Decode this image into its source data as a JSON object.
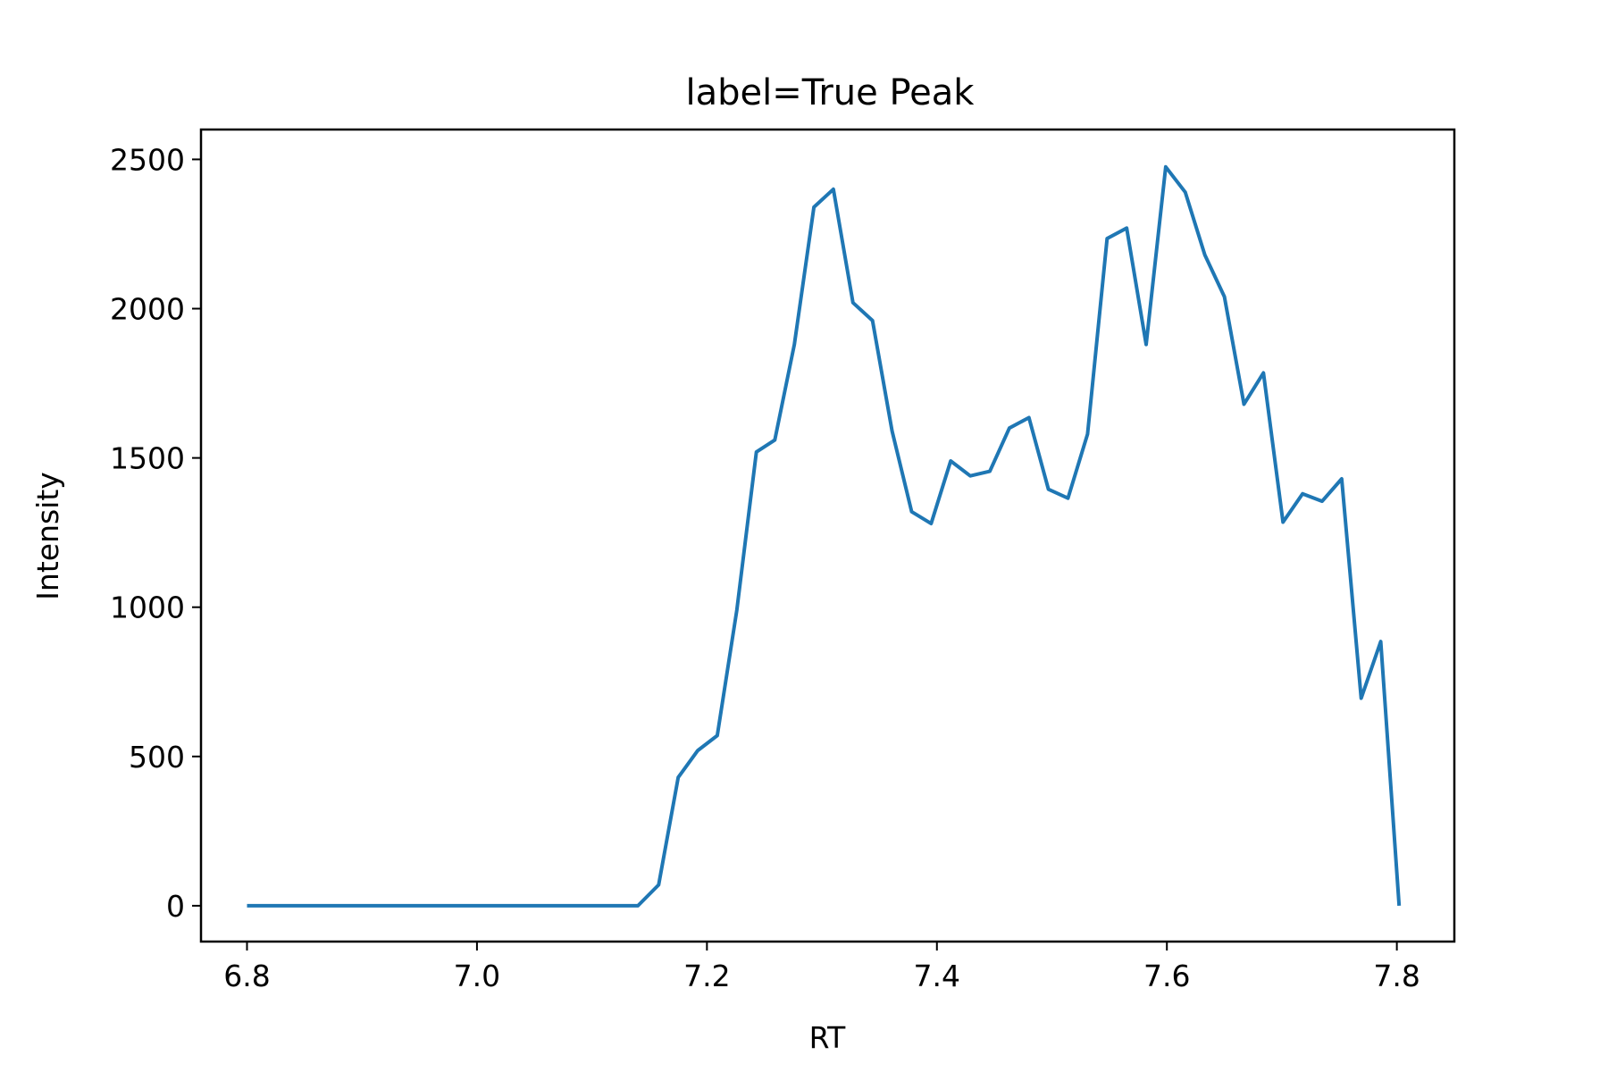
{
  "chart_data": {
    "type": "line",
    "title": "label=True Peak",
    "xlabel": "RT",
    "ylabel": "Intensity",
    "xlim": [
      6.76,
      7.85
    ],
    "ylim": [
      -120,
      2600
    ],
    "xticks": [
      6.8,
      7.0,
      7.2,
      7.4,
      7.6,
      7.8
    ],
    "xtick_labels": [
      "6.8",
      "7.0",
      "7.2",
      "7.4",
      "7.6",
      "7.8"
    ],
    "yticks": [
      0,
      500,
      1000,
      1500,
      2000,
      2500
    ],
    "ytick_labels": [
      "0",
      "500",
      "1000",
      "1500",
      "2000",
      "2500"
    ],
    "grid": false,
    "series": [
      {
        "color": "#1f77b4",
        "x": [
          6.8,
          6.817,
          6.834,
          6.851,
          6.868,
          6.885,
          6.902,
          6.919,
          6.936,
          6.953,
          6.97,
          6.987,
          7.004,
          7.021,
          7.038,
          7.055,
          7.072,
          7.089,
          7.106,
          7.123,
          7.14,
          7.158,
          7.175,
          7.192,
          7.209,
          7.226,
          7.243,
          7.259,
          7.276,
          7.293,
          7.31,
          7.327,
          7.344,
          7.361,
          7.378,
          7.395,
          7.412,
          7.429,
          7.446,
          7.463,
          7.48,
          7.497,
          7.514,
          7.531,
          7.548,
          7.565,
          7.582,
          7.599,
          7.616,
          7.633,
          7.65,
          7.667,
          7.684,
          7.701,
          7.718,
          7.735,
          7.752,
          7.769,
          7.786,
          7.802
        ],
        "y": [
          0,
          0,
          0,
          0,
          0,
          0,
          0,
          0,
          0,
          0,
          0,
          0,
          0,
          0,
          0,
          0,
          0,
          0,
          0,
          0,
          0,
          70,
          430,
          520,
          570,
          990,
          1520,
          1560,
          1880,
          2340,
          2400,
          2020,
          1960,
          1590,
          1320,
          1280,
          1490,
          1440,
          1455,
          1600,
          1635,
          1395,
          1365,
          1580,
          2235,
          2270,
          1880,
          2475,
          2390,
          2180,
          2040,
          1680,
          1785,
          1285,
          1380,
          1355,
          1430,
          695,
          885,
          0
        ]
      }
    ]
  }
}
